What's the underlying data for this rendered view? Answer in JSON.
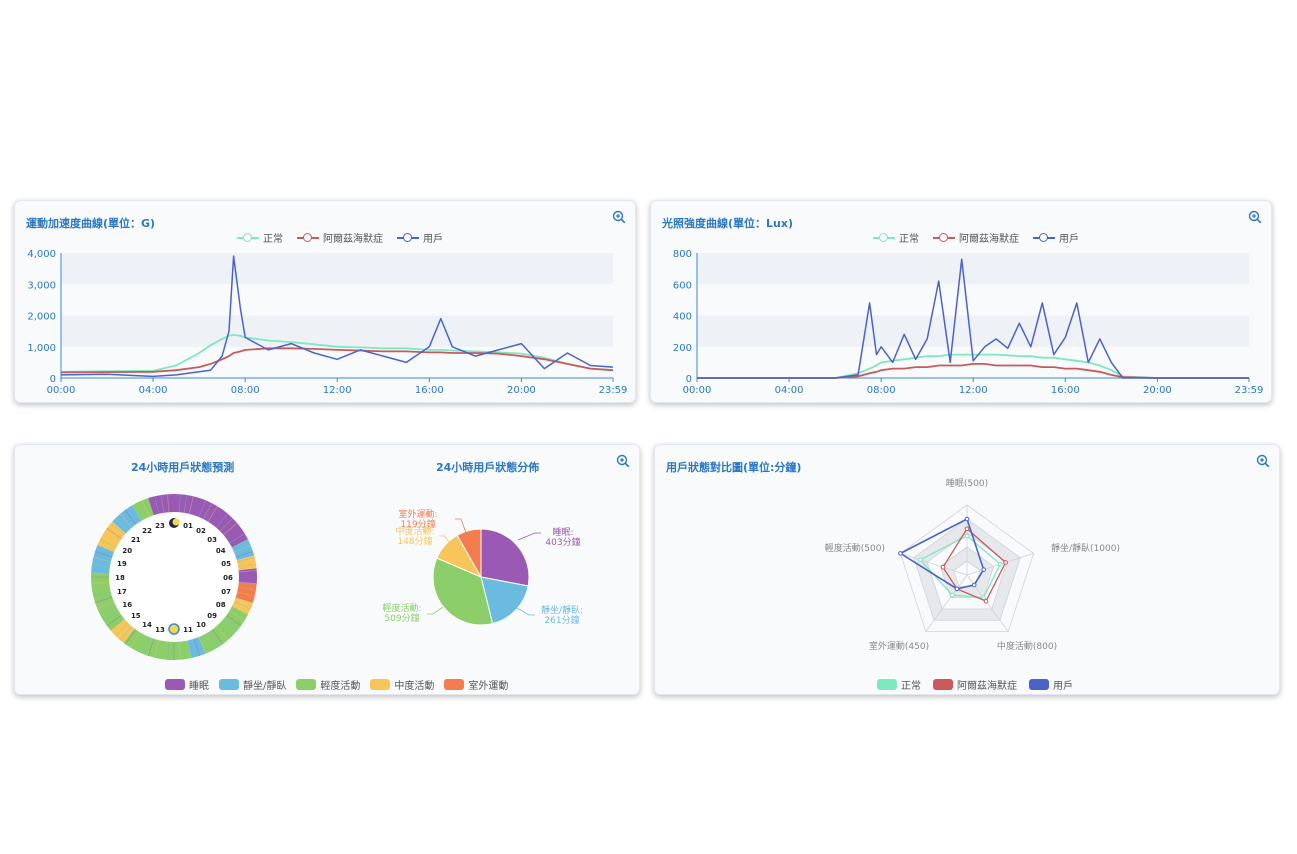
{
  "colors": {
    "normal": "#7ee8c0",
    "alz": "#c85a5a",
    "user": "#4a63c8",
    "title": "#2b78c2",
    "sleep": "#9b59b6",
    "sit": "#6bbbe0",
    "light": "#8ccf6a",
    "mid": "#f8c55a",
    "outdoor": "#f47d4f"
  },
  "accel": {
    "title": "運動加速度曲線(單位：G)",
    "legend": [
      "正常",
      "阿爾茲海默症",
      "用戶"
    ],
    "y_ticks": [
      "4,000",
      "3,000",
      "2,000",
      "1,000",
      "0"
    ],
    "x_ticks": [
      "00:00",
      "04:00",
      "08:00",
      "12:00",
      "16:00",
      "20:00",
      "23:59"
    ]
  },
  "light": {
    "title": "光照強度曲線(單位：Lux)",
    "legend": [
      "正常",
      "阿爾茲海默症",
      "用戶"
    ],
    "y_ticks": [
      "800",
      "600",
      "400",
      "200",
      "0"
    ],
    "x_ticks": [
      "00:00",
      "04:00",
      "08:00",
      "12:00",
      "16:00",
      "20:00",
      "23:59"
    ]
  },
  "status": {
    "ring_title": "24小時用戶狀態預測",
    "pie_title": "24小時用戶狀態分佈",
    "hours": [
      "23",
      "01",
      "22",
      "02",
      "21",
      "03",
      "20",
      "04",
      "19",
      "05",
      "18",
      "06",
      "17",
      "07",
      "16",
      "08",
      "15",
      "09",
      "14",
      "10",
      "13",
      "11"
    ],
    "pie_labels": {
      "outdoor": [
        "室外運動:",
        "119分鐘"
      ],
      "mid": [
        "中度活動:",
        "148分鐘"
      ],
      "sleep": [
        "睡眠:",
        "403分鐘"
      ],
      "light": [
        "輕度活動:",
        "509分鐘"
      ],
      "sit": [
        "靜坐/靜臥:",
        "261分鐘"
      ]
    },
    "legend": [
      "睡眠",
      "靜坐/靜臥",
      "輕度活動",
      "中度活動",
      "室外運動"
    ]
  },
  "radar": {
    "title": "用戶狀態對比圖(單位:分鐘)",
    "axes": [
      "睡眠(500)",
      "靜坐/靜臥(1000)",
      "中度活動(800)",
      "室外運動(450)",
      "輕度活動(500)"
    ],
    "legend": [
      "正常",
      "阿爾茲海默症",
      "用戶"
    ]
  },
  "chart_data": [
    {
      "type": "line",
      "title": "運動加速度曲線(單位：G)",
      "ylabel": "G",
      "ylim": [
        0,
        4000
      ],
      "x_range": [
        "00:00",
        "23:59"
      ],
      "x_hours": [
        0,
        2,
        4,
        5,
        6,
        6.5,
        7,
        7.3,
        7.5,
        7.8,
        8,
        9,
        10,
        11,
        12,
        13,
        14,
        15,
        16,
        16.5,
        17,
        18,
        19,
        20,
        21,
        22,
        23,
        23.98
      ],
      "series": [
        {
          "name": "正常",
          "values": [
            200,
            220,
            230,
            400,
            800,
            1050,
            1250,
            1350,
            1380,
            1350,
            1300,
            1200,
            1150,
            1080,
            1000,
            980,
            950,
            950,
            900,
            900,
            880,
            850,
            820,
            780,
            650,
            450,
            300,
            250
          ]
        },
        {
          "name": "阿爾茲海默症",
          "values": [
            180,
            190,
            200,
            250,
            350,
            450,
            600,
            700,
            800,
            850,
            900,
            950,
            950,
            930,
            900,
            880,
            850,
            850,
            820,
            820,
            800,
            800,
            780,
            700,
            600,
            450,
            300,
            250
          ]
        },
        {
          "name": "用戶",
          "values": [
            100,
            120,
            50,
            100,
            200,
            250,
            700,
            1500,
            3900,
            2200,
            1300,
            900,
            1100,
            800,
            600,
            900,
            700,
            500,
            1000,
            1900,
            1000,
            700,
            900,
            1100,
            300,
            800,
            400,
            350
          ]
        }
      ],
      "grid": true
    },
    {
      "type": "line",
      "title": "光照強度曲線(單位：Lux)",
      "ylabel": "Lux",
      "ylim": [
        0,
        800
      ],
      "x_range": [
        "00:00",
        "23:59"
      ],
      "x_hours": [
        0,
        4,
        6,
        7,
        7.5,
        7.8,
        8,
        8.5,
        9,
        9.5,
        10,
        10.5,
        11,
        11.5,
        12,
        12.5,
        13,
        13.5,
        14,
        14.5,
        15,
        15.5,
        16,
        16.5,
        17,
        17.5,
        18,
        18.5,
        20,
        23.98
      ],
      "series": [
        {
          "name": "正常",
          "values": [
            0,
            0,
            0,
            30,
            60,
            80,
            100,
            110,
            120,
            130,
            140,
            140,
            150,
            150,
            150,
            150,
            150,
            145,
            140,
            140,
            130,
            130,
            120,
            110,
            100,
            80,
            50,
            10,
            0,
            0
          ]
        },
        {
          "name": "阿爾茲海默症",
          "values": [
            0,
            0,
            0,
            10,
            30,
            40,
            50,
            60,
            60,
            70,
            70,
            80,
            80,
            80,
            90,
            90,
            80,
            80,
            80,
            80,
            70,
            70,
            60,
            60,
            50,
            40,
            20,
            5,
            0,
            0
          ]
        },
        {
          "name": "用戶",
          "values": [
            0,
            0,
            0,
            20,
            480,
            150,
            200,
            100,
            280,
            120,
            250,
            620,
            100,
            760,
            110,
            200,
            250,
            190,
            350,
            200,
            480,
            150,
            260,
            480,
            100,
            250,
            100,
            0,
            0,
            0
          ]
        }
      ],
      "grid": true
    },
    {
      "type": "pie",
      "title": "24小時用戶狀態分佈",
      "labels": [
        "睡眠",
        "靜坐/靜臥",
        "輕度活動",
        "中度活動",
        "室外運動"
      ],
      "values": [
        403,
        261,
        509,
        148,
        119
      ],
      "unit": "分鐘"
    },
    {
      "type": "radar",
      "title": "用戶狀態對比圖(單位:分鐘)",
      "axes": [
        "睡眠(500)",
        "靜坐/靜臥(1000)",
        "中度活動(800)",
        "室外運動(450)",
        "輕度活動(500)"
      ],
      "axis_max": [
        500,
        1000,
        800,
        450,
        500
      ],
      "series": [
        {
          "name": "正常",
          "values": [
            280,
            500,
            320,
            160,
            350
          ]
        },
        {
          "name": "阿爾茲海默症",
          "values": [
            330,
            580,
            370,
            110,
            180
          ]
        },
        {
          "name": "用戶",
          "values": [
            400,
            250,
            140,
            110,
            500
          ]
        }
      ]
    }
  ]
}
